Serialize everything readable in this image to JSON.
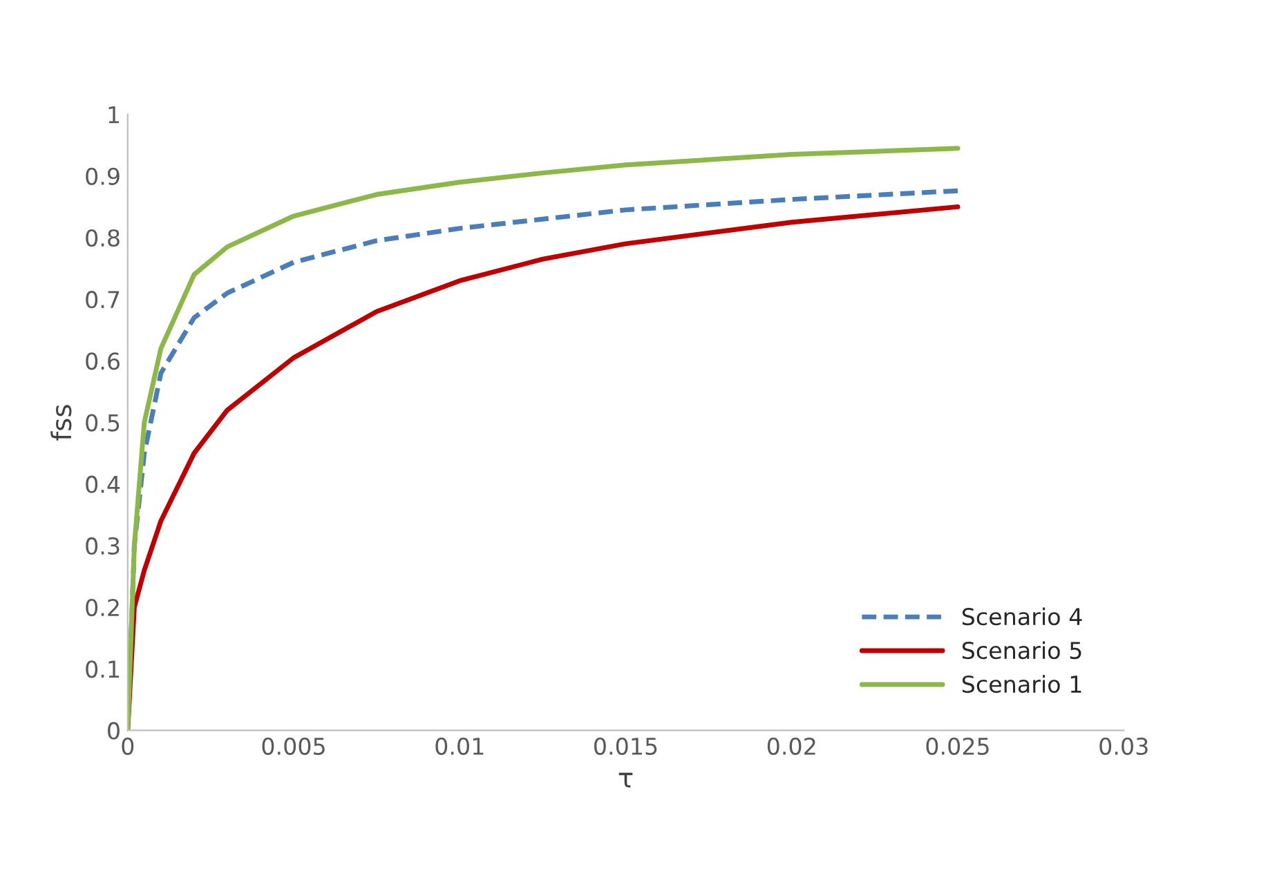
{
  "chart_data": {
    "type": "line",
    "xlabel": "τ",
    "ylabel": "fss",
    "x": [
      0,
      0.0002,
      0.0005,
      0.001,
      0.002,
      0.003,
      0.005,
      0.0075,
      0.01,
      0.0125,
      0.015,
      0.02,
      0.025
    ],
    "series": [
      {
        "name": "Scenario 4",
        "color": "#4a7ebb",
        "line_style": "dashed",
        "values": [
          0,
          0.3,
          0.45,
          0.58,
          0.67,
          0.71,
          0.76,
          0.795,
          0.815,
          0.83,
          0.845,
          0.862,
          0.876
        ]
      },
      {
        "name": "Scenario 5",
        "color": "#c00000",
        "line_style": "solid",
        "values": [
          0,
          0.2,
          0.26,
          0.34,
          0.45,
          0.52,
          0.605,
          0.68,
          0.73,
          0.765,
          0.79,
          0.825,
          0.85
        ]
      },
      {
        "name": "Scenario 1",
        "color": "#8cb84a",
        "line_style": "solid",
        "values": [
          0,
          0.3,
          0.5,
          0.62,
          0.74,
          0.785,
          0.835,
          0.87,
          0.89,
          0.905,
          0.918,
          0.935,
          0.945
        ]
      }
    ],
    "xlim": [
      0,
      0.03
    ],
    "xticks": [
      0,
      0.005,
      0.01,
      0.015,
      0.02,
      0.025,
      0.03
    ],
    "ylim": [
      0,
      1
    ],
    "yticks": [
      0,
      0.1,
      0.2,
      0.3,
      0.4,
      0.5,
      0.6,
      0.7,
      0.8,
      0.9,
      1
    ],
    "grid": false,
    "legend": "bottom right",
    "marker": "none"
  }
}
